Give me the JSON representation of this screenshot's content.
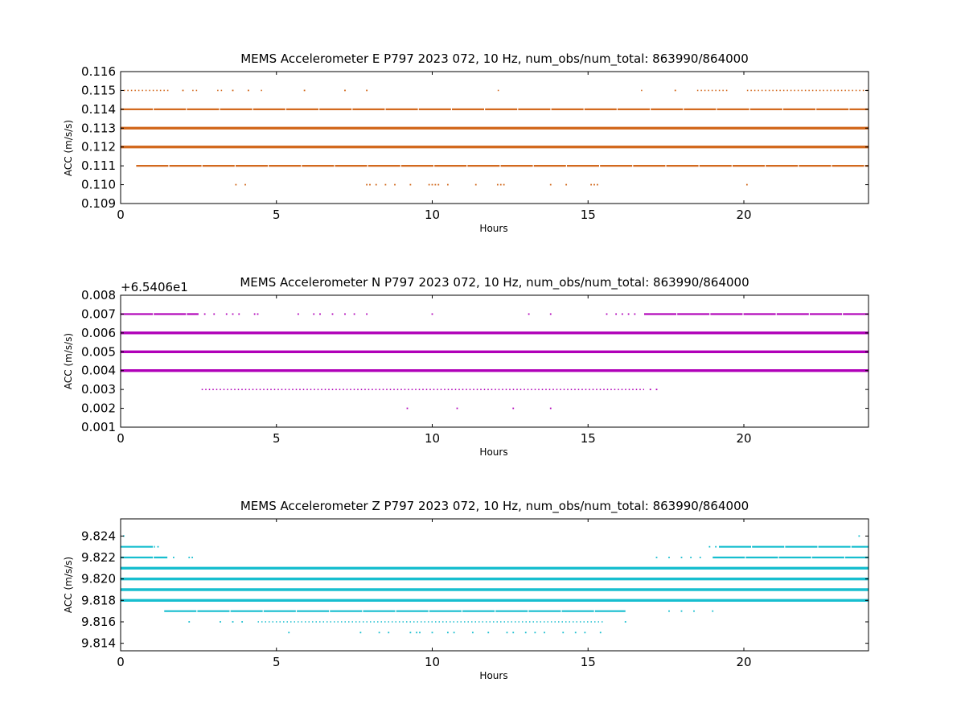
{
  "chart_data": [
    {
      "type": "scatter",
      "title": "MEMS Accelerometer E P797 2023 072, 10 Hz, num_obs/num_total: 863990/864000",
      "xlabel": "Hours",
      "ylabel": "ACC (m/s/s)",
      "offset_label": "",
      "color": "#d2691e",
      "xlim": [
        0,
        24
      ],
      "ylim": [
        0.109,
        0.116
      ],
      "xticks": [
        0,
        5,
        10,
        15,
        20
      ],
      "xtick_labels": [
        "0",
        "5",
        "10",
        "15",
        "20"
      ],
      "yticks": [
        0.109,
        0.11,
        0.111,
        0.112,
        0.113,
        0.114,
        0.115,
        0.116
      ],
      "ytick_labels": [
        "0.109",
        "0.110",
        "0.111",
        "0.112",
        "0.113",
        "0.114",
        "0.115",
        "0.116"
      ],
      "levels": [
        {
          "y": 0.115,
          "density": "sparse",
          "ranges": [
            [
              0.1,
              1.6
            ],
            [
              2.3,
              2.5
            ],
            [
              3.1,
              3.3
            ],
            [
              4.5,
              4.6
            ],
            [
              12.1,
              12.2
            ],
            [
              16.7,
              16.8
            ],
            [
              18.5,
              19.5
            ],
            [
              20.1,
              24.0
            ]
          ],
          "points": [
            2.0,
            3.6,
            4.1,
            5.9,
            7.2,
            7.9,
            17.8
          ]
        },
        {
          "y": 0.114,
          "density": "dense",
          "ranges": [
            [
              0,
              24
            ]
          ],
          "points": []
        },
        {
          "y": 0.113,
          "density": "full",
          "ranges": [
            [
              0,
              24
            ]
          ],
          "points": []
        },
        {
          "y": 0.112,
          "density": "full",
          "ranges": [
            [
              0,
              24
            ]
          ],
          "points": []
        },
        {
          "y": 0.111,
          "density": "dense",
          "ranges": [
            [
              0.5,
              24.0
            ]
          ],
          "points": []
        },
        {
          "y": 0.11,
          "density": "points",
          "ranges": [],
          "points": [
            3.7,
            4.0,
            7.9,
            8.0,
            8.2,
            8.5,
            8.8,
            9.3,
            9.9,
            10.0,
            10.1,
            10.2,
            10.5,
            11.4,
            12.1,
            12.2,
            12.3,
            13.8,
            14.3,
            15.1,
            15.2,
            15.3,
            20.1
          ]
        }
      ]
    },
    {
      "type": "scatter",
      "title": "MEMS Accelerometer N P797 2023 072, 10 Hz, num_obs/num_total: 863990/864000",
      "xlabel": "Hours",
      "ylabel": "ACC (m/s/s)",
      "offset_label": "+6.5406e1",
      "color": "#b000b8",
      "xlim": [
        0,
        24
      ],
      "ylim": [
        0.001,
        0.008
      ],
      "xticks": [
        0,
        5,
        10,
        15,
        20
      ],
      "xtick_labels": [
        "0",
        "5",
        "10",
        "15",
        "20"
      ],
      "yticks": [
        0.001,
        0.002,
        0.003,
        0.004,
        0.005,
        0.006,
        0.007,
        0.008
      ],
      "ytick_labels": [
        "0.001",
        "0.002",
        "0.003",
        "0.004",
        "0.005",
        "0.006",
        "0.007",
        "0.008"
      ],
      "levels": [
        {
          "y": 0.007,
          "density": "dense",
          "ranges": [
            [
              0,
              2.5
            ],
            [
              16.8,
              24.0
            ]
          ],
          "points": [
            2.7,
            3.0,
            3.4,
            3.6,
            3.8,
            4.3,
            4.4,
            5.7,
            6.2,
            6.4,
            6.8,
            7.2,
            7.5,
            7.9,
            10.0,
            13.1,
            13.8,
            15.6,
            15.9,
            16.1,
            16.3,
            16.5
          ]
        },
        {
          "y": 0.006,
          "density": "full",
          "ranges": [
            [
              0,
              24
            ]
          ],
          "points": []
        },
        {
          "y": 0.005,
          "density": "full",
          "ranges": [
            [
              0,
              24
            ]
          ],
          "points": []
        },
        {
          "y": 0.004,
          "density": "full",
          "ranges": [
            [
              0,
              24
            ]
          ],
          "points": []
        },
        {
          "y": 0.003,
          "density": "sparse",
          "ranges": [
            [
              2.6,
              16.8
            ]
          ],
          "points": [
            17.0,
            17.2
          ]
        },
        {
          "y": 0.002,
          "density": "points",
          "ranges": [],
          "points": [
            9.2,
            10.8,
            12.6,
            13.8
          ]
        }
      ]
    },
    {
      "type": "scatter",
      "title": "MEMS Accelerometer Z P797 2023 072, 10 Hz, num_obs/num_total: 863990/864000",
      "xlabel": "Hours",
      "ylabel": "ACC (m/s/s)",
      "offset_label": "",
      "color": "#17becf",
      "xlim": [
        0,
        24
      ],
      "ylim": [
        9.8133,
        9.8256
      ],
      "xticks": [
        0,
        5,
        10,
        15,
        20
      ],
      "xtick_labels": [
        "0",
        "5",
        "10",
        "15",
        "20"
      ],
      "yticks": [
        9.814,
        9.816,
        9.818,
        9.82,
        9.822,
        9.824
      ],
      "ytick_labels": [
        "9.814",
        "9.816",
        "9.818",
        "9.820",
        "9.822",
        "9.824"
      ],
      "levels": [
        {
          "y": 9.824,
          "density": "points",
          "ranges": [],
          "points": [
            0.1,
            23.7
          ]
        },
        {
          "y": 9.823,
          "density": "dense",
          "ranges": [
            [
              0,
              1.1
            ],
            [
              19.2,
              24.0
            ]
          ],
          "points": [
            1.2,
            18.9,
            19.1
          ]
        },
        {
          "y": 9.822,
          "density": "dense",
          "ranges": [
            [
              0,
              1.5
            ],
            [
              19.0,
              24.0
            ]
          ],
          "points": [
            1.7,
            2.2,
            2.3,
            17.2,
            17.6,
            18.0,
            18.3,
            18.6
          ]
        },
        {
          "y": 9.821,
          "density": "full",
          "ranges": [
            [
              0,
              24
            ]
          ],
          "points": []
        },
        {
          "y": 9.82,
          "density": "full",
          "ranges": [
            [
              0,
              24
            ]
          ],
          "points": []
        },
        {
          "y": 9.819,
          "density": "full",
          "ranges": [
            [
              0,
              24
            ]
          ],
          "points": []
        },
        {
          "y": 9.818,
          "density": "full",
          "ranges": [
            [
              0,
              24
            ]
          ],
          "points": []
        },
        {
          "y": 9.817,
          "density": "dense",
          "ranges": [
            [
              1.4,
              16.2
            ]
          ],
          "points": [
            17.6,
            18.0,
            18.4,
            19.0
          ]
        },
        {
          "y": 9.816,
          "density": "sparse",
          "ranges": [
            [
              4.4,
              15.5
            ]
          ],
          "points": [
            2.2,
            3.2,
            3.6,
            3.9,
            16.2
          ]
        },
        {
          "y": 9.815,
          "density": "points",
          "ranges": [],
          "points": [
            5.4,
            7.7,
            8.3,
            8.6,
            9.3,
            9.5,
            9.6,
            10.0,
            10.5,
            10.7,
            11.3,
            11.8,
            12.4,
            12.6,
            13.0,
            13.3,
            13.6,
            14.2,
            14.6,
            14.9,
            15.4
          ]
        }
      ]
    }
  ]
}
